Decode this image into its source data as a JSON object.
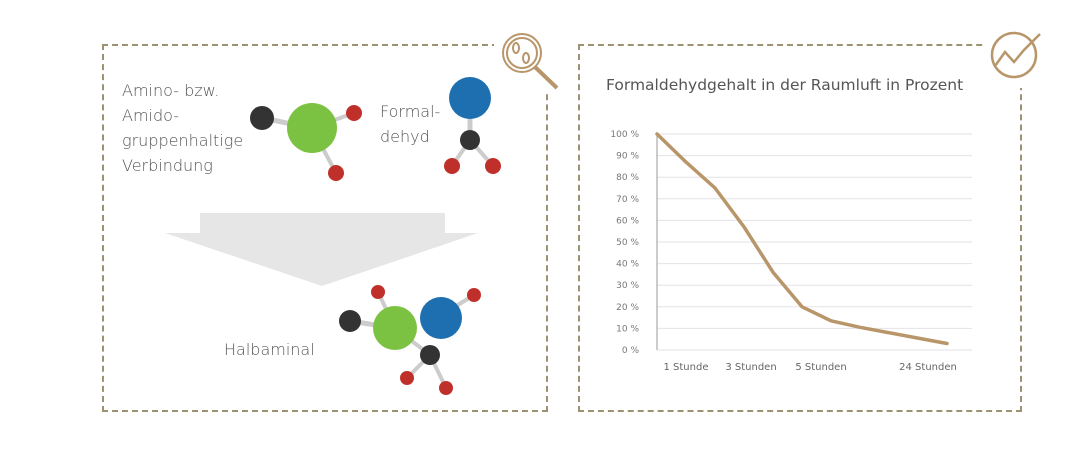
{
  "left_panel": {
    "amino_label": [
      "Amino- bzw.",
      "Amido-",
      "gruppenhaltige",
      "Verbindung"
    ],
    "formaldehyde_label": [
      "Formal-",
      "dehyd"
    ],
    "product_label": "Halbaminal",
    "icon": "magnifier-bacteria-icon"
  },
  "right_panel": {
    "icon": "trend-chart-icon"
  },
  "colors": {
    "accent": "#b8966a",
    "frame": "#9a9270",
    "green": "#7cc242",
    "blue": "#1e6fb0",
    "red": "#c0302a",
    "dark": "#333333"
  },
  "chart_data": {
    "type": "line",
    "title": "Formaldehydgehalt in der Raumluft in Prozent",
    "xlabel": "",
    "ylabel": "",
    "ylim": [
      0,
      100
    ],
    "yticks": [
      "0 %",
      "10 %",
      "20 %",
      "30 %",
      "40 %",
      "50 %",
      "60 %",
      "70 %",
      "80 %",
      "90 %",
      "100 %"
    ],
    "xticks": [
      "1 Stunde",
      "3 Stunden",
      "5 Stunden",
      "24 Stunden"
    ],
    "grid": true,
    "series": [
      {
        "values": [
          100,
          87,
          75,
          57,
          36,
          20,
          13.5,
          10.5,
          8,
          5.5,
          3
        ]
      }
    ]
  }
}
